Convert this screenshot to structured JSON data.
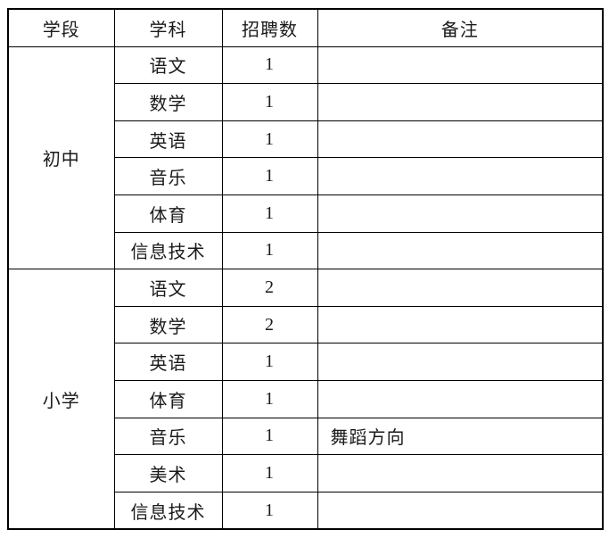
{
  "colors": {
    "border": "#000000",
    "text": "#1a1a1a",
    "background": "#ffffff"
  },
  "table": {
    "headers": [
      "学段",
      "学科",
      "招聘数",
      "备注"
    ],
    "sections": [
      {
        "stage": "初中",
        "rows": [
          {
            "subject": "语文",
            "count": "1",
            "note": ""
          },
          {
            "subject": "数学",
            "count": "1",
            "note": ""
          },
          {
            "subject": "英语",
            "count": "1",
            "note": ""
          },
          {
            "subject": "音乐",
            "count": "1",
            "note": ""
          },
          {
            "subject": "体育",
            "count": "1",
            "note": ""
          },
          {
            "subject": "信息技术",
            "count": "1",
            "note": ""
          }
        ]
      },
      {
        "stage": "小学",
        "rows": [
          {
            "subject": "语文",
            "count": "2",
            "note": ""
          },
          {
            "subject": "数学",
            "count": "2",
            "note": ""
          },
          {
            "subject": "英语",
            "count": "1",
            "note": ""
          },
          {
            "subject": "体育",
            "count": "1",
            "note": ""
          },
          {
            "subject": "音乐",
            "count": "1",
            "note": "舞蹈方向"
          },
          {
            "subject": "美术",
            "count": "1",
            "note": ""
          },
          {
            "subject": "信息技术",
            "count": "1",
            "note": ""
          }
        ]
      }
    ]
  }
}
